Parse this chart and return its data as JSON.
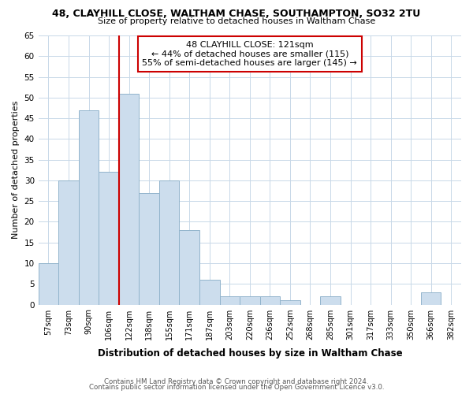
{
  "title1": "48, CLAYHILL CLOSE, WALTHAM CHASE, SOUTHAMPTON, SO32 2TU",
  "title2": "Size of property relative to detached houses in Waltham Chase",
  "xlabel": "Distribution of detached houses by size in Waltham Chase",
  "ylabel": "Number of detached properties",
  "bin_labels": [
    "57sqm",
    "73sqm",
    "90sqm",
    "106sqm",
    "122sqm",
    "138sqm",
    "155sqm",
    "171sqm",
    "187sqm",
    "203sqm",
    "220sqm",
    "236sqm",
    "252sqm",
    "268sqm",
    "285sqm",
    "301sqm",
    "317sqm",
    "333sqm",
    "350sqm",
    "366sqm",
    "382sqm"
  ],
  "bar_heights": [
    10,
    30,
    47,
    32,
    51,
    27,
    30,
    18,
    6,
    2,
    2,
    2,
    1,
    0,
    2,
    0,
    0,
    0,
    0,
    3,
    0
  ],
  "bar_color": "#ccdded",
  "bar_edge_color": "#92b4cc",
  "property_line_label": "48 CLAYHILL CLOSE: 121sqm",
  "annotation_line1": "← 44% of detached houses are smaller (115)",
  "annotation_line2": "55% of semi-detached houses are larger (145) →",
  "annotation_box_color": "#ffffff",
  "annotation_box_edge": "#cc0000",
  "vline_color": "#cc0000",
  "vline_x_index": 3.5,
  "ylim": [
    0,
    65
  ],
  "yticks": [
    0,
    5,
    10,
    15,
    20,
    25,
    30,
    35,
    40,
    45,
    50,
    55,
    60,
    65
  ],
  "footer1": "Contains HM Land Registry data © Crown copyright and database right 2024.",
  "footer2": "Contains public sector information licensed under the Open Government Licence v3.0.",
  "bg_color": "#ffffff",
  "grid_color": "#c8d8e8"
}
